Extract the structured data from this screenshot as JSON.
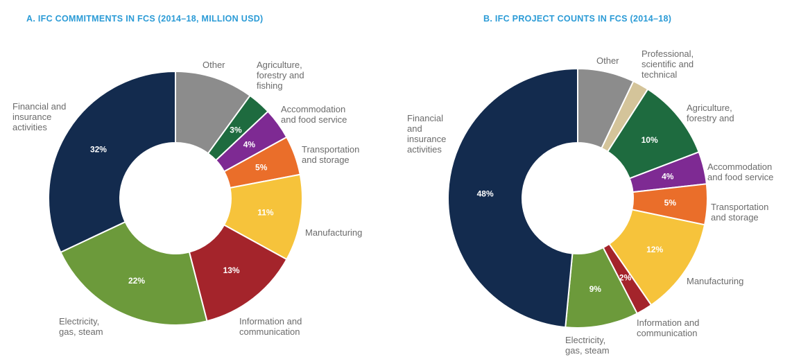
{
  "colors": {
    "title": "#2b9bd6",
    "Financial and insurance activities": "#132b4e",
    "Electricity, gas, steam": "#6c9a3b",
    "Information and communication": "#a4242b",
    "Manufacturing": "#f6c33b",
    "Transportation and storage": "#ea6e2a",
    "Accommodation and food service": "#7e2a93",
    "Agriculture, forestry and fishing": "#1e6b3f",
    "Professional, scientific and technical": "#d4c49a",
    "Other": "#8c8c8c"
  },
  "chart_data": [
    {
      "type": "pie",
      "style": "donut",
      "title": "A. IFC COMMITMENTS IN FCS (2014–18, MILLION USD)",
      "slices": [
        {
          "key": "other",
          "label_lines": [
            "Other"
          ],
          "value": 10,
          "value_label": "",
          "color": "#8c8c8c"
        },
        {
          "key": "agri",
          "label_lines": [
            "Agriculture,",
            "forestry and",
            "fishing"
          ],
          "value": 3,
          "value_label": "3%",
          "color": "#1e6b3f"
        },
        {
          "key": "accom",
          "label_lines": [
            "Accommodation",
            "and food service"
          ],
          "value": 4,
          "value_label": "4%",
          "color": "#7e2a93"
        },
        {
          "key": "transport",
          "label_lines": [
            "Transportation",
            "and storage"
          ],
          "value": 5,
          "value_label": "5%",
          "color": "#ea6e2a"
        },
        {
          "key": "manuf",
          "label_lines": [
            "Manufacturing"
          ],
          "value": 11,
          "value_label": "11%",
          "color": "#f6c33b"
        },
        {
          "key": "info",
          "label_lines": [
            "Information and",
            "communication"
          ],
          "value": 13,
          "value_label": "13%",
          "color": "#a4242b"
        },
        {
          "key": "elec",
          "label_lines": [
            "Electricity,",
            "gas, steam"
          ],
          "value": 22,
          "value_label": "22%",
          "color": "#6c9a3b"
        },
        {
          "key": "fin",
          "label_lines": [
            "Financial and",
            "insurance",
            "activities"
          ],
          "value": 32,
          "value_label": "32%",
          "color": "#132b4e"
        }
      ]
    },
    {
      "type": "pie",
      "style": "donut",
      "title": "B. IFC PROJECT COUNTS IN FCS (2014–18)",
      "slices": [
        {
          "key": "other",
          "label_lines": [
            "Other"
          ],
          "value": 7,
          "value_label": "",
          "color": "#8c8c8c"
        },
        {
          "key": "prof",
          "label_lines": [
            "Professional,",
            "scientific and",
            "technical"
          ],
          "value": 2,
          "value_label": "",
          "color": "#d4c49a"
        },
        {
          "key": "agri",
          "label_lines": [
            "Agriculture,",
            "forestry and"
          ],
          "value": 10,
          "value_label": "10%",
          "color": "#1e6b3f"
        },
        {
          "key": "accom",
          "label_lines": [
            "Accommodation",
            "and food service"
          ],
          "value": 4,
          "value_label": "4%",
          "color": "#7e2a93"
        },
        {
          "key": "transport",
          "label_lines": [
            "Transportation",
            "and storage"
          ],
          "value": 5,
          "value_label": "5%",
          "color": "#ea6e2a"
        },
        {
          "key": "manuf",
          "label_lines": [
            "Manufacturing"
          ],
          "value": 12,
          "value_label": "12%",
          "color": "#f6c33b"
        },
        {
          "key": "info",
          "label_lines": [
            "Information and",
            "communication"
          ],
          "value": 2,
          "value_label": "2%",
          "color": "#a4242b"
        },
        {
          "key": "elec",
          "label_lines": [
            "Electricity,",
            "gas, steam"
          ],
          "value": 9,
          "value_label": "9%",
          "color": "#6c9a3b"
        },
        {
          "key": "fin",
          "label_lines": [
            "Financial",
            "and",
            "insurance",
            "activities"
          ],
          "value": 48,
          "value_label": "48%",
          "color": "#132b4e"
        }
      ]
    }
  ]
}
